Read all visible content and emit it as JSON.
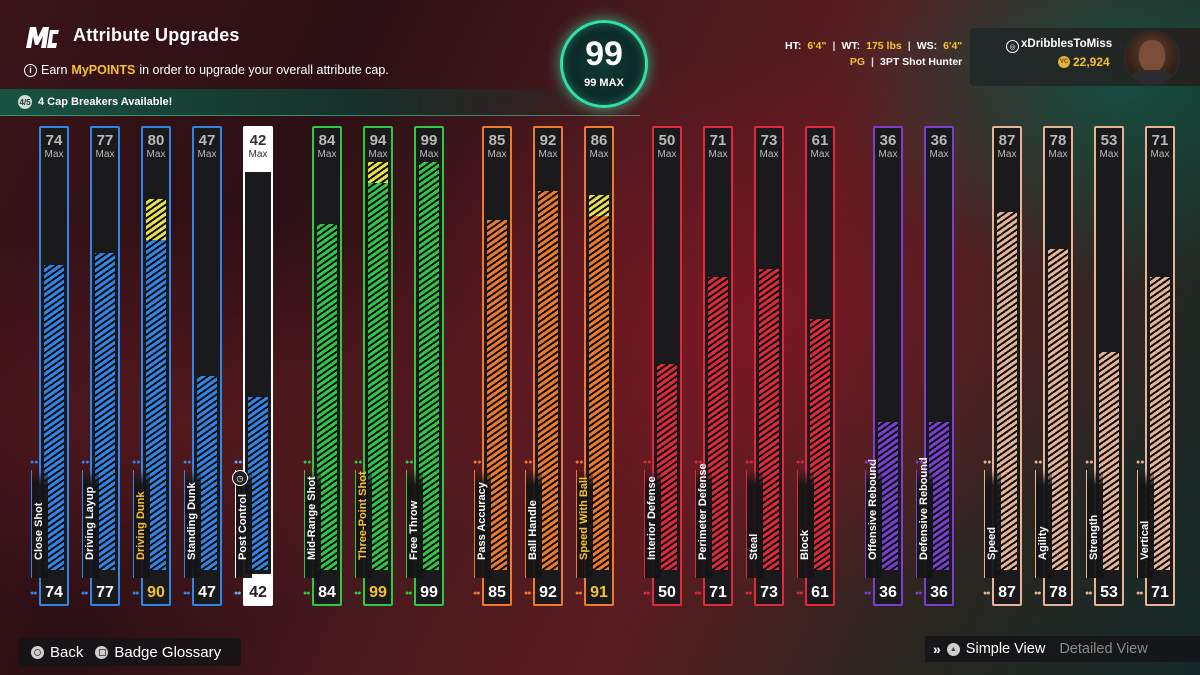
{
  "header": {
    "logo_text": "MC",
    "title": "Attribute Upgrades",
    "subtitle_prefix": "Earn",
    "subtitle_highlight": "MyPOINTS",
    "subtitle_suffix": "in order to upgrade your overall attribute cap.",
    "cap_breakers_icon_text": "4/5",
    "cap_breakers": "4 Cap Breakers Available!"
  },
  "overall": {
    "value": "99",
    "max_label": "99 MAX"
  },
  "profile": {
    "ht_label": "HT:",
    "ht_value": "6'4\"",
    "wt_label": "WT:",
    "wt_value": "175 lbs",
    "ws_label": "WS:",
    "ws_value": "6'4\"",
    "position": "PG",
    "archetype": "3PT Shot Hunter"
  },
  "user": {
    "username": "xDribblesToMiss",
    "vc": "22,924",
    "coin_label": "VC"
  },
  "max_label": "Max",
  "colors": {
    "inside": "#2f86e8",
    "shooting": "#2fc845",
    "playmaking": "#f07a2a",
    "defense": "#e02a3c",
    "rebounding": "#7a3ed0",
    "physicals": "#e6b394",
    "boost": "#e8e04a",
    "highlight_gold": "#f5c22e"
  },
  "attributes": [
    {
      "name": "Close Shot",
      "current": 74,
      "max": 74,
      "group": "inside"
    },
    {
      "name": "Driving Layup",
      "current": 77,
      "max": 77,
      "group": "inside"
    },
    {
      "name": "Driving Dunk",
      "current": 90,
      "max": 80,
      "group": "inside",
      "boosted": true
    },
    {
      "name": "Standing Dunk",
      "current": 47,
      "max": 47,
      "group": "inside"
    },
    {
      "name": "Post Control",
      "current": 42,
      "max": 42,
      "group": "inside",
      "selected": true
    },
    {
      "name": "Mid-Range Shot",
      "current": 84,
      "max": 84,
      "group": "shooting"
    },
    {
      "name": "Three-Point Shot",
      "current": 99,
      "max": 94,
      "group": "shooting",
      "boosted": true
    },
    {
      "name": "Free Throw",
      "current": 99,
      "max": 99,
      "group": "shooting"
    },
    {
      "name": "Pass Accuracy",
      "current": 85,
      "max": 85,
      "group": "playmaking"
    },
    {
      "name": "Ball Handle",
      "current": 92,
      "max": 92,
      "group": "playmaking"
    },
    {
      "name": "Speed With Ball",
      "current": 91,
      "max": 86,
      "group": "playmaking",
      "boosted": true
    },
    {
      "name": "Interior Defense",
      "current": 50,
      "max": 50,
      "group": "defense"
    },
    {
      "name": "Perimeter Defense",
      "current": 71,
      "max": 71,
      "group": "defense"
    },
    {
      "name": "Steal",
      "current": 73,
      "max": 73,
      "group": "defense"
    },
    {
      "name": "Block",
      "current": 61,
      "max": 61,
      "group": "defense"
    },
    {
      "name": "Offensive Rebound",
      "current": 36,
      "max": 36,
      "group": "rebounding"
    },
    {
      "name": "Defensive Rebound",
      "current": 36,
      "max": 36,
      "group": "rebounding"
    },
    {
      "name": "Speed",
      "current": 87,
      "max": 87,
      "group": "physicals"
    },
    {
      "name": "Agility",
      "current": 78,
      "max": 78,
      "group": "physicals"
    },
    {
      "name": "Strength",
      "current": 53,
      "max": 53,
      "group": "physicals"
    },
    {
      "name": "Vertical",
      "current": 71,
      "max": 71,
      "group": "physicals"
    }
  ],
  "footer": {
    "back": "Back",
    "glossary": "Badge Glossary",
    "simple_view": "Simple View",
    "detailed_view": "Detailed View"
  }
}
